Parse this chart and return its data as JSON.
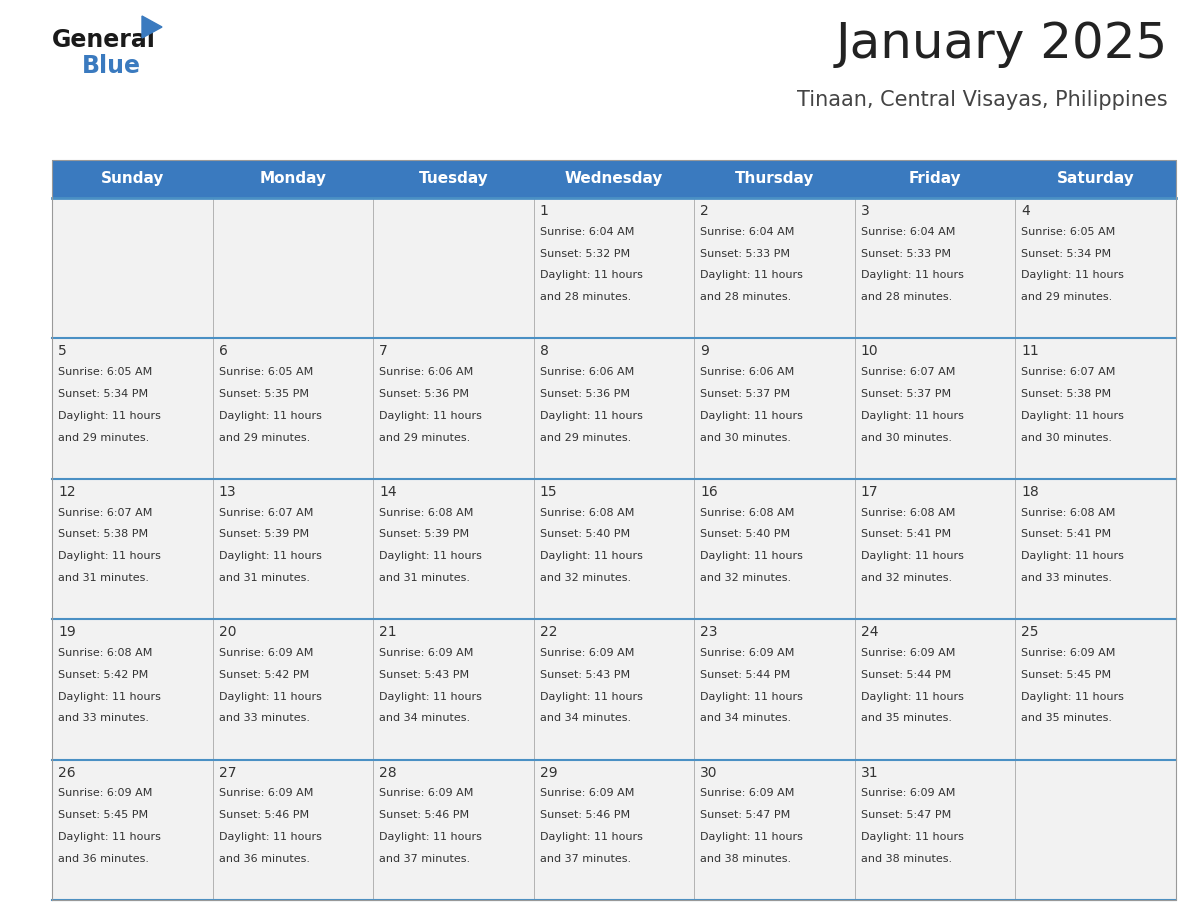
{
  "title": "January 2025",
  "subtitle": "Tinaan, Central Visayas, Philippines",
  "header_bg": "#3a7abf",
  "header_text_color": "#ffffff",
  "cell_bg": "#f2f2f2",
  "border_color": "#3a7abf",
  "row_line_color": "#4a90c4",
  "day_names": [
    "Sunday",
    "Monday",
    "Tuesday",
    "Wednesday",
    "Thursday",
    "Friday",
    "Saturday"
  ],
  "days": [
    {
      "day": 1,
      "col": 3,
      "row": 0,
      "sunrise": "6:04 AM",
      "sunset": "5:32 PM",
      "daylight": "11 hours and 28 minutes"
    },
    {
      "day": 2,
      "col": 4,
      "row": 0,
      "sunrise": "6:04 AM",
      "sunset": "5:33 PM",
      "daylight": "11 hours and 28 minutes"
    },
    {
      "day": 3,
      "col": 5,
      "row": 0,
      "sunrise": "6:04 AM",
      "sunset": "5:33 PM",
      "daylight": "11 hours and 28 minutes"
    },
    {
      "day": 4,
      "col": 6,
      "row": 0,
      "sunrise": "6:05 AM",
      "sunset": "5:34 PM",
      "daylight": "11 hours and 29 minutes"
    },
    {
      "day": 5,
      "col": 0,
      "row": 1,
      "sunrise": "6:05 AM",
      "sunset": "5:34 PM",
      "daylight": "11 hours and 29 minutes"
    },
    {
      "day": 6,
      "col": 1,
      "row": 1,
      "sunrise": "6:05 AM",
      "sunset": "5:35 PM",
      "daylight": "11 hours and 29 minutes"
    },
    {
      "day": 7,
      "col": 2,
      "row": 1,
      "sunrise": "6:06 AM",
      "sunset": "5:36 PM",
      "daylight": "11 hours and 29 minutes"
    },
    {
      "day": 8,
      "col": 3,
      "row": 1,
      "sunrise": "6:06 AM",
      "sunset": "5:36 PM",
      "daylight": "11 hours and 29 minutes"
    },
    {
      "day": 9,
      "col": 4,
      "row": 1,
      "sunrise": "6:06 AM",
      "sunset": "5:37 PM",
      "daylight": "11 hours and 30 minutes"
    },
    {
      "day": 10,
      "col": 5,
      "row": 1,
      "sunrise": "6:07 AM",
      "sunset": "5:37 PM",
      "daylight": "11 hours and 30 minutes"
    },
    {
      "day": 11,
      "col": 6,
      "row": 1,
      "sunrise": "6:07 AM",
      "sunset": "5:38 PM",
      "daylight": "11 hours and 30 minutes"
    },
    {
      "day": 12,
      "col": 0,
      "row": 2,
      "sunrise": "6:07 AM",
      "sunset": "5:38 PM",
      "daylight": "11 hours and 31 minutes"
    },
    {
      "day": 13,
      "col": 1,
      "row": 2,
      "sunrise": "6:07 AM",
      "sunset": "5:39 PM",
      "daylight": "11 hours and 31 minutes"
    },
    {
      "day": 14,
      "col": 2,
      "row": 2,
      "sunrise": "6:08 AM",
      "sunset": "5:39 PM",
      "daylight": "11 hours and 31 minutes"
    },
    {
      "day": 15,
      "col": 3,
      "row": 2,
      "sunrise": "6:08 AM",
      "sunset": "5:40 PM",
      "daylight": "11 hours and 32 minutes"
    },
    {
      "day": 16,
      "col": 4,
      "row": 2,
      "sunrise": "6:08 AM",
      "sunset": "5:40 PM",
      "daylight": "11 hours and 32 minutes"
    },
    {
      "day": 17,
      "col": 5,
      "row": 2,
      "sunrise": "6:08 AM",
      "sunset": "5:41 PM",
      "daylight": "11 hours and 32 minutes"
    },
    {
      "day": 18,
      "col": 6,
      "row": 2,
      "sunrise": "6:08 AM",
      "sunset": "5:41 PM",
      "daylight": "11 hours and 33 minutes"
    },
    {
      "day": 19,
      "col": 0,
      "row": 3,
      "sunrise": "6:08 AM",
      "sunset": "5:42 PM",
      "daylight": "11 hours and 33 minutes"
    },
    {
      "day": 20,
      "col": 1,
      "row": 3,
      "sunrise": "6:09 AM",
      "sunset": "5:42 PM",
      "daylight": "11 hours and 33 minutes"
    },
    {
      "day": 21,
      "col": 2,
      "row": 3,
      "sunrise": "6:09 AM",
      "sunset": "5:43 PM",
      "daylight": "11 hours and 34 minutes"
    },
    {
      "day": 22,
      "col": 3,
      "row": 3,
      "sunrise": "6:09 AM",
      "sunset": "5:43 PM",
      "daylight": "11 hours and 34 minutes"
    },
    {
      "day": 23,
      "col": 4,
      "row": 3,
      "sunrise": "6:09 AM",
      "sunset": "5:44 PM",
      "daylight": "11 hours and 34 minutes"
    },
    {
      "day": 24,
      "col": 5,
      "row": 3,
      "sunrise": "6:09 AM",
      "sunset": "5:44 PM",
      "daylight": "11 hours and 35 minutes"
    },
    {
      "day": 25,
      "col": 6,
      "row": 3,
      "sunrise": "6:09 AM",
      "sunset": "5:45 PM",
      "daylight": "11 hours and 35 minutes"
    },
    {
      "day": 26,
      "col": 0,
      "row": 4,
      "sunrise": "6:09 AM",
      "sunset": "5:45 PM",
      "daylight": "11 hours and 36 minutes"
    },
    {
      "day": 27,
      "col": 1,
      "row": 4,
      "sunrise": "6:09 AM",
      "sunset": "5:46 PM",
      "daylight": "11 hours and 36 minutes"
    },
    {
      "day": 28,
      "col": 2,
      "row": 4,
      "sunrise": "6:09 AM",
      "sunset": "5:46 PM",
      "daylight": "11 hours and 37 minutes"
    },
    {
      "day": 29,
      "col": 3,
      "row": 4,
      "sunrise": "6:09 AM",
      "sunset": "5:46 PM",
      "daylight": "11 hours and 37 minutes"
    },
    {
      "day": 30,
      "col": 4,
      "row": 4,
      "sunrise": "6:09 AM",
      "sunset": "5:47 PM",
      "daylight": "11 hours and 38 minutes"
    },
    {
      "day": 31,
      "col": 5,
      "row": 4,
      "sunrise": "6:09 AM",
      "sunset": "5:47 PM",
      "daylight": "11 hours and 38 minutes"
    }
  ],
  "logo_general_color": "#1a1a1a",
  "logo_blue_color": "#3a7abf",
  "logo_triangle_color": "#3a7abf",
  "fig_width": 11.88,
  "fig_height": 9.18,
  "dpi": 100
}
